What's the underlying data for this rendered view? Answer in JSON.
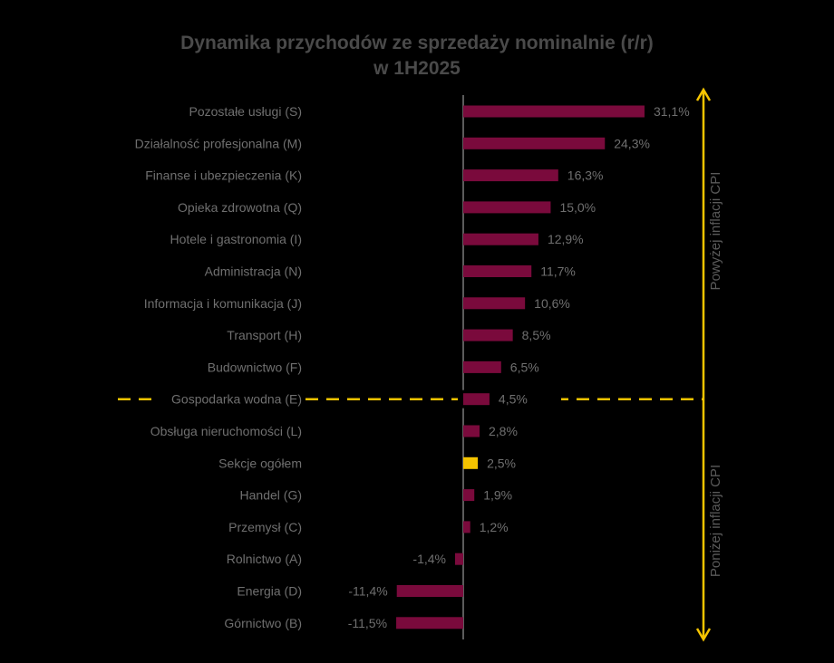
{
  "chart_data": {
    "type": "bar",
    "orientation": "horizontal",
    "title": "Dynamika przychodów ze sprzedaży nominalnie (r/r)",
    "subtitle": "w 1H2025",
    "categories": [
      "Pozostałe usługi (S)",
      "Działalność profesjonalna (M)",
      "Finanse i ubezpieczenia (K)",
      "Opieka zdrowotna (Q)",
      "Hotele i gastronomia (I)",
      "Administracja (N)",
      "Informacja i komunikacja (J)",
      "Transport (H)",
      "Budownictwo (F)",
      "Gospodarka wodna (E)",
      "Obsługa nieruchomości (L)",
      "Sekcje ogółem",
      "Handel (G)",
      "Przemysł (C)",
      "Rolnictwo (A)",
      "Energia (D)",
      "Górnictwo (B)"
    ],
    "values": [
      31.1,
      24.3,
      16.3,
      15.0,
      12.9,
      11.7,
      10.6,
      8.5,
      6.5,
      4.5,
      2.8,
      2.5,
      1.9,
      1.2,
      -1.4,
      -11.4,
      -11.5
    ],
    "value_labels": [
      "31,1%",
      "24,3%",
      "16,3%",
      "15,0%",
      "12,9%",
      "11,7%",
      "10,6%",
      "8,5%",
      "6,5%",
      "4,5%",
      "2,8%",
      "2,5%",
      "1,9%",
      "1,2%",
      "-1,4%",
      "-11,4%",
      "-11,5%"
    ],
    "highlight_category": "Sekcje ogółem",
    "colors": {
      "bar": "#7a0a3c",
      "highlight": "#f5c400",
      "cpi_line": "#f5c400",
      "axis": "#9a9a9a"
    },
    "cpi_threshold_after": "Gospodarka wodna (E)",
    "annotations": {
      "above": "Powyżej inflacji CPI",
      "below": "Poniżej inflacji CPI"
    },
    "xlim": [
      -12,
      32
    ]
  }
}
